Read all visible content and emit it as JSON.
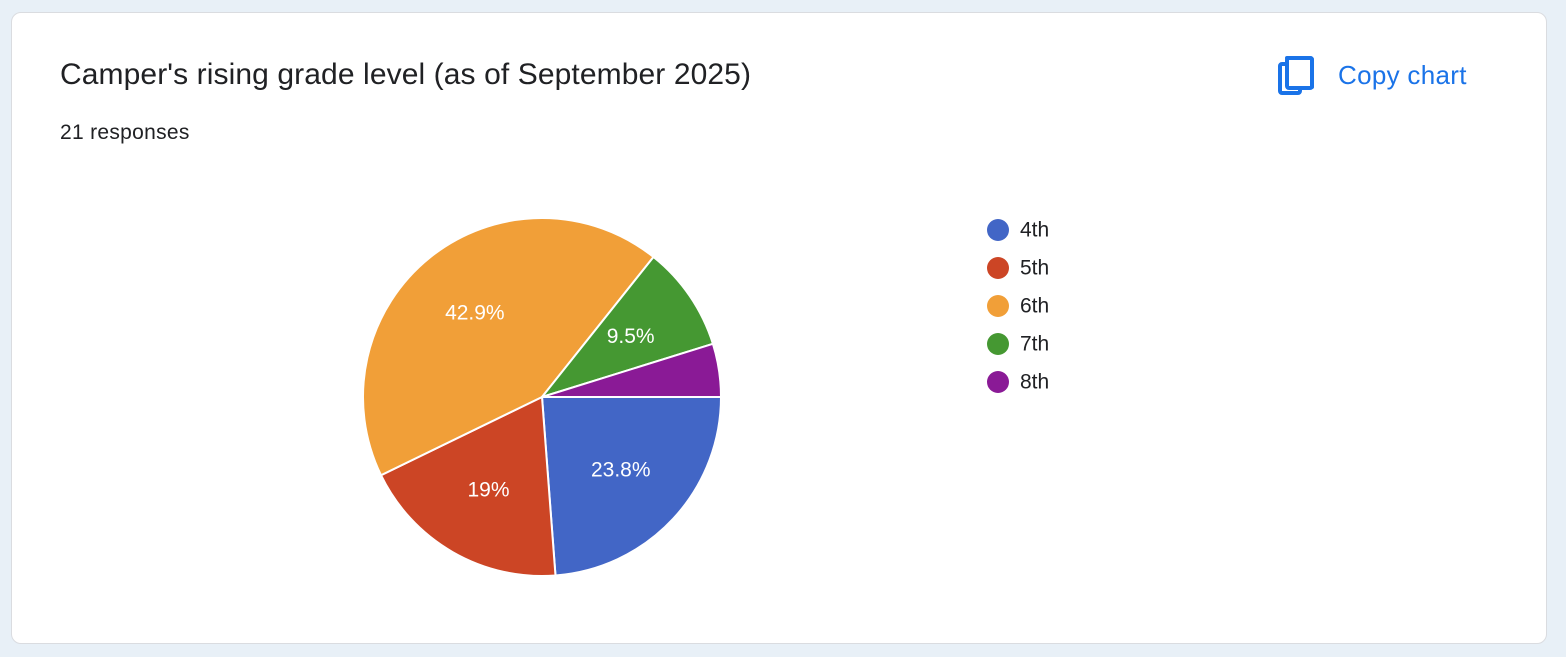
{
  "header": {
    "title": "Camper's rising grade level (as of September 2025)",
    "responses": "21 responses",
    "copy_label": "Copy chart",
    "copy_icon": "copy-icon",
    "accent": "#1a73e8"
  },
  "chart_data": {
    "type": "pie",
    "title": "Camper's rising grade level (as of September 2025)",
    "categories": [
      "4th",
      "5th",
      "6th",
      "7th",
      "8th"
    ],
    "values": [
      23.8,
      19,
      42.9,
      9.5,
      4.8
    ],
    "labels": [
      "23.8%",
      "19%",
      "42.9%",
      "9.5%",
      ""
    ],
    "colors": [
      "#4266c6",
      "#cc4525",
      "#f19f38",
      "#459832",
      "#8a1a96"
    ],
    "legend_position": "right"
  }
}
